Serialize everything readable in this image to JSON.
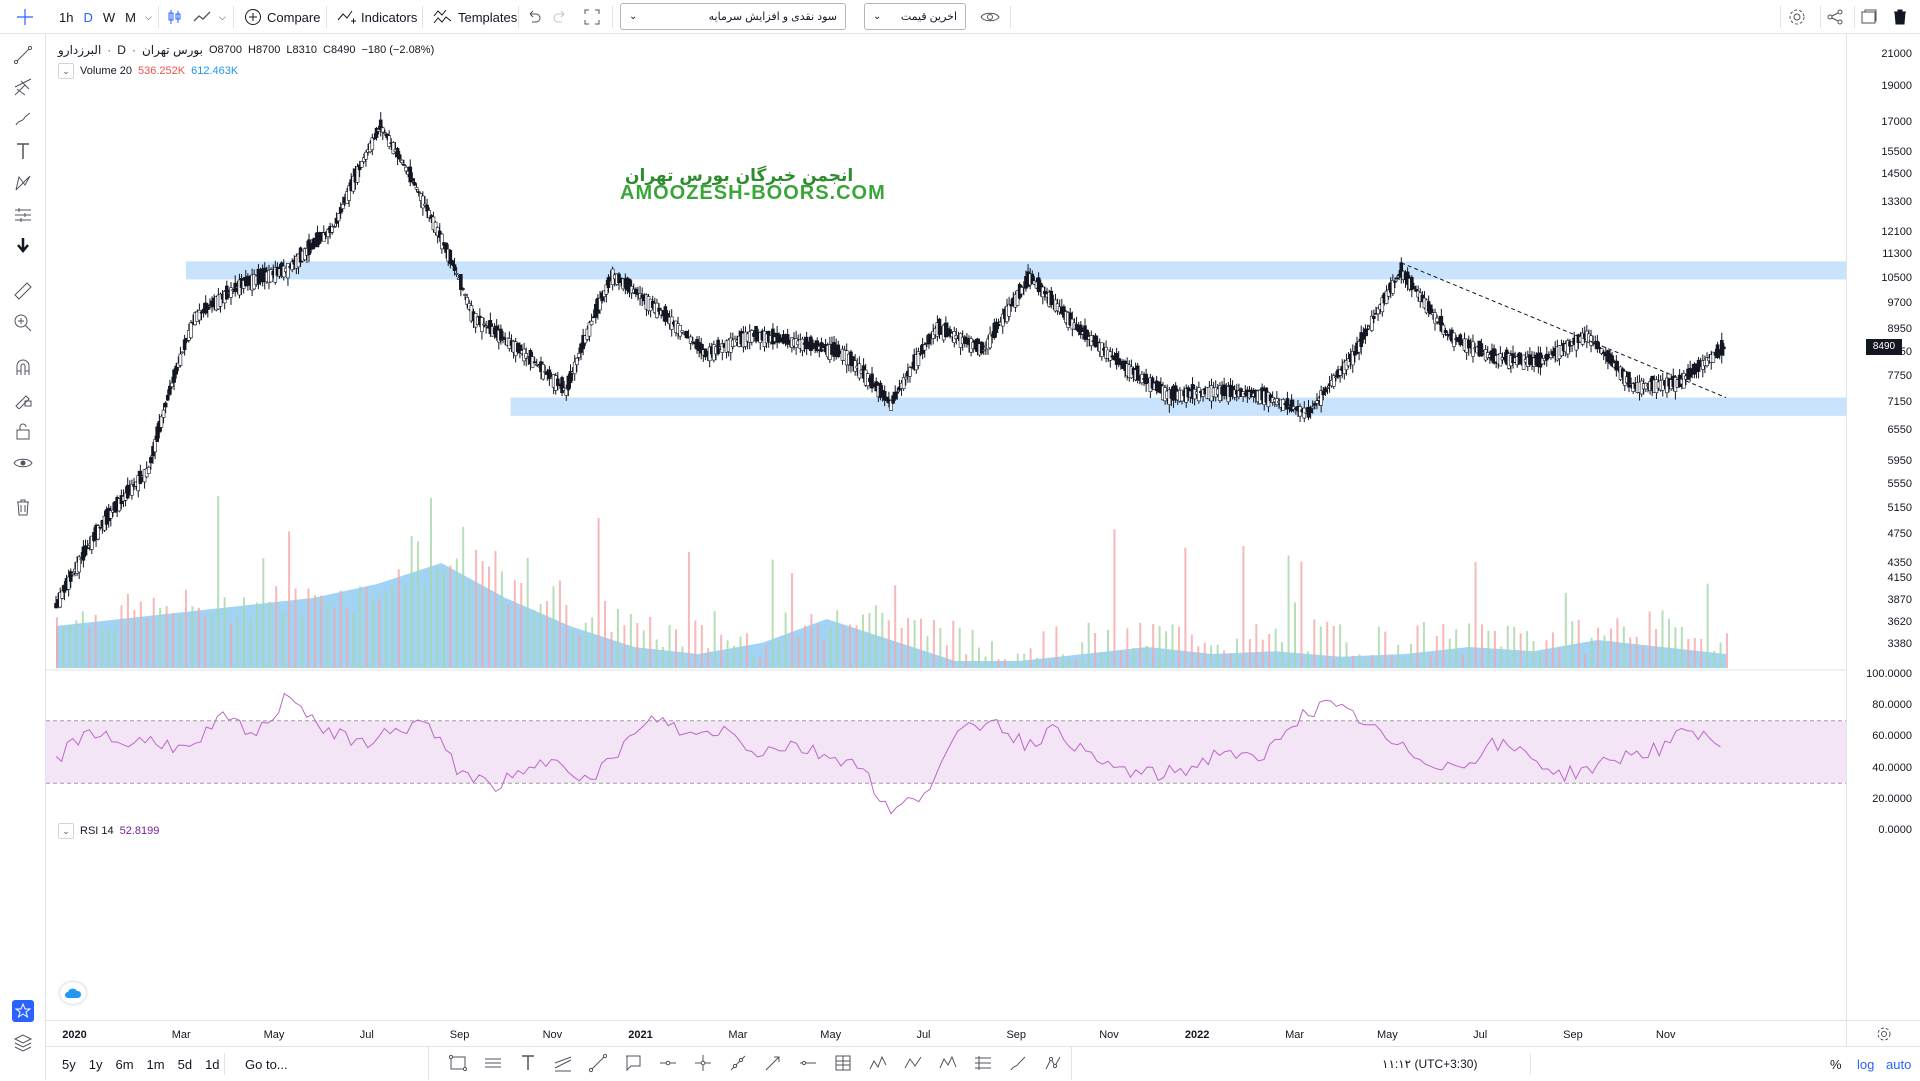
{
  "toolbar": {
    "intervals": [
      "1h",
      "D",
      "W",
      "M"
    ],
    "compare_label": "Compare",
    "indicators_label": "Indicators",
    "templates_label": "Templates",
    "dropdown_1": "سود نقدی و افزایش سرمایه",
    "dropdown_2": "اخرین قیمت"
  },
  "legend": {
    "symbol": "البرزدارو",
    "interval": "D",
    "exchange": "بورس تهران",
    "o_label": "O",
    "o_value": "8700",
    "h_label": "H",
    "h_value": "8700",
    "l_label": "L",
    "l_value": "8310",
    "c_label": "C",
    "c_value": "8490",
    "change": "−180 (−2.08%)",
    "volume_label": "Volume 20",
    "volume_value_1": "536.252K",
    "volume_value_2": "612.463K",
    "volume_color_1": "#ef5350",
    "volume_color_2": "#2196f3",
    "rsi_label": "RSI 14",
    "rsi_value": "52.8199",
    "rsi_color": "#7b1fa2"
  },
  "watermark": {
    "persian": "انجمن خبرگان بورس تهران",
    "english": "AMOOZESH-BOORS.COM"
  },
  "price_axis": {
    "labels": [
      "21000",
      "19000",
      "17000",
      "15500",
      "14500",
      "13300",
      "12100",
      "11300",
      "10500",
      "9700",
      "8950",
      "8350",
      "7750",
      "7150",
      "6550",
      "5950",
      "5550",
      "5150",
      "4750",
      "4350",
      "4150",
      "3870",
      "3620",
      "3380"
    ],
    "current_price": "8490",
    "rsi_labels": [
      "100.0000",
      "80.0000",
      "60.0000",
      "40.0000",
      "20.0000",
      "0.0000"
    ]
  },
  "time_axis": {
    "labels": [
      "2020",
      "Mar",
      "May",
      "Jul",
      "Sep",
      "Nov",
      "2021",
      "Mar",
      "May",
      "Jul",
      "Sep",
      "Nov",
      "2022",
      "Mar",
      "May",
      "Jul",
      "Sep",
      "Nov"
    ]
  },
  "bottom": {
    "ranges": [
      "5y",
      "1y",
      "6m",
      "1m",
      "5d",
      "1d"
    ],
    "goto_label": "Go to...",
    "clock": "۱۱:۱۲ (UTC+3:30)",
    "percent_label": "%",
    "log_label": "log",
    "auto_label": "auto"
  },
  "colors": {
    "band": "#c8e3fb",
    "rsi_band": "#f3e5f5",
    "rsi_line": "#ba68c8",
    "volume_area": "#81c6f0",
    "accent": "#2962ff"
  },
  "chart_data": {
    "type": "candlestick",
    "symbol": "البرزدارو",
    "xlim": [
      "2019-12",
      "2022-12"
    ],
    "ylim": [
      3380,
      21000
    ],
    "price_path": [
      {
        "x": "2019-12",
        "y": 3800
      },
      {
        "x": "2020-01",
        "y": 4900
      },
      {
        "x": "2020-02",
        "y": 5800
      },
      {
        "x": "2020-03",
        "y": 9300
      },
      {
        "x": "2020-04",
        "y": 10300
      },
      {
        "x": "2020-05",
        "y": 10800
      },
      {
        "x": "2020-06",
        "y": 12300
      },
      {
        "x": "2020-07",
        "y": 16800
      },
      {
        "x": "2020-08",
        "y": 13000
      },
      {
        "x": "2020-09",
        "y": 9300
      },
      {
        "x": "2020-10",
        "y": 8400
      },
      {
        "x": "2020-11",
        "y": 7400
      },
      {
        "x": "2020-12",
        "y": 10600
      },
      {
        "x": "2021-01",
        "y": 9500
      },
      {
        "x": "2021-02",
        "y": 8300
      },
      {
        "x": "2021-03",
        "y": 8800
      },
      {
        "x": "2021-04",
        "y": 8600
      },
      {
        "x": "2021-05",
        "y": 8300
      },
      {
        "x": "2021-06",
        "y": 7100
      },
      {
        "x": "2021-07",
        "y": 9000
      },
      {
        "x": "2021-08",
        "y": 8400
      },
      {
        "x": "2021-09",
        "y": 10500
      },
      {
        "x": "2021-10",
        "y": 9000
      },
      {
        "x": "2021-11",
        "y": 8000
      },
      {
        "x": "2021-12",
        "y": 7300
      },
      {
        "x": "2022-01",
        "y": 7400
      },
      {
        "x": "2022-02",
        "y": 7300
      },
      {
        "x": "2022-03",
        "y": 6900
      },
      {
        "x": "2022-04",
        "y": 8300
      },
      {
        "x": "2022-05",
        "y": 10700
      },
      {
        "x": "2022-06",
        "y": 8800
      },
      {
        "x": "2022-07",
        "y": 8200
      },
      {
        "x": "2022-08",
        "y": 8100
      },
      {
        "x": "2022-09",
        "y": 8800
      },
      {
        "x": "2022-10",
        "y": 7500
      },
      {
        "x": "2022-11",
        "y": 7600
      },
      {
        "x": "2022-12",
        "y": 8490
      }
    ],
    "zones": [
      {
        "from": 10450,
        "to": 11050
      },
      {
        "from": 6850,
        "to": 7250
      }
    ],
    "trendline": [
      {
        "x": "2022-05",
        "y": 11000
      },
      {
        "x": "2022-12",
        "y": 7250
      }
    ],
    "rsi": {
      "period": 14,
      "upper": 70,
      "lower": 30,
      "values": [
        45,
        65,
        55,
        58,
        50,
        72,
        60,
        88,
        65,
        55,
        62,
        70,
        40,
        28,
        35,
        48,
        30,
        55,
        72,
        60,
        65,
        50,
        55,
        48,
        44,
        10,
        25,
        60,
        72,
        55,
        65,
        45,
        38,
        35,
        40,
        52,
        42,
        70,
        80,
        72,
        55,
        45,
        40,
        55,
        50,
        35,
        40,
        48,
        52,
        65,
        53
      ]
    },
    "volume": {
      "area_levels": [
        0.3,
        0.35,
        0.4,
        0.45,
        0.5,
        0.6,
        0.75,
        0.5,
        0.3,
        0.15,
        0.1,
        0.18,
        0.35,
        0.2,
        0.05,
        0.05,
        0.1,
        0.15,
        0.1,
        0.12,
        0.08,
        0.1,
        0.15,
        0.12,
        0.2,
        0.15,
        0.1
      ]
    }
  }
}
